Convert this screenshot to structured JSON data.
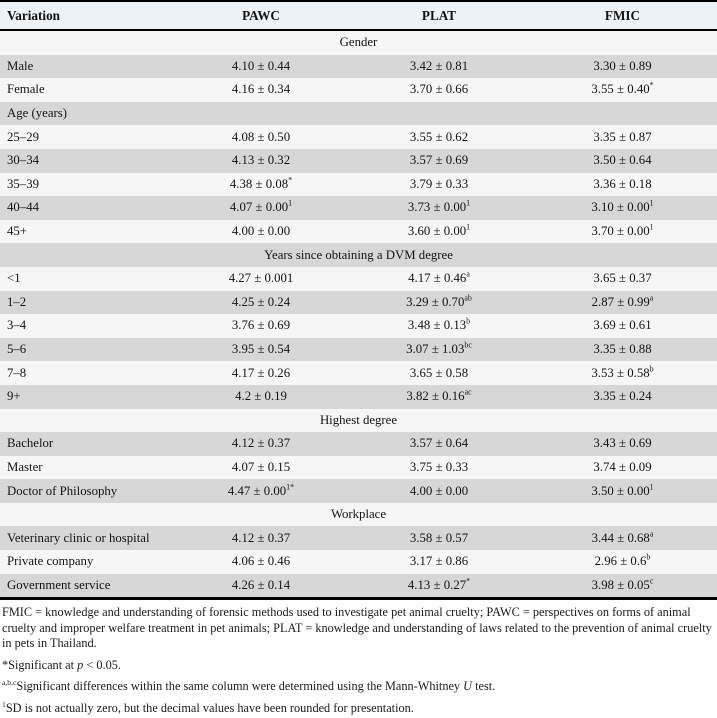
{
  "colors": {
    "row_shaded": "#d7d7d7",
    "row_light": "#f6f6f6",
    "header_bg": "#edf2f7",
    "border": "#000000"
  },
  "table": {
    "columns": [
      "Variation",
      "PAWC",
      "PLAT",
      "FMIC"
    ],
    "rows": [
      {
        "type": "section",
        "label": "Gender"
      },
      {
        "type": "data",
        "label": "Male",
        "cells": [
          {
            "v": "4.10 ± 0.44",
            "sup": ""
          },
          {
            "v": "3.42 ± 0.81",
            "sup": ""
          },
          {
            "v": "3.30 ± 0.89",
            "sup": ""
          }
        ]
      },
      {
        "type": "data",
        "label": "Female",
        "cells": [
          {
            "v": "4.16 ± 0.34",
            "sup": ""
          },
          {
            "v": "3.70 ± 0.66",
            "sup": ""
          },
          {
            "v": "3.55 ± 0.40",
            "sup": "*"
          }
        ]
      },
      {
        "type": "subsection",
        "label": "Age (years)"
      },
      {
        "type": "data",
        "label": "25–29",
        "cells": [
          {
            "v": "4.08 ± 0.50",
            "sup": ""
          },
          {
            "v": "3.55 ± 0.62",
            "sup": ""
          },
          {
            "v": "3.35 ± 0.87",
            "sup": ""
          }
        ]
      },
      {
        "type": "data",
        "label": "30–34",
        "cells": [
          {
            "v": "4.13 ± 0.32",
            "sup": ""
          },
          {
            "v": "3.57 ± 0.69",
            "sup": ""
          },
          {
            "v": "3.50 ± 0.64",
            "sup": ""
          }
        ]
      },
      {
        "type": "data",
        "label": "35–39",
        "cells": [
          {
            "v": "4.38 ± 0.08",
            "sup": "*"
          },
          {
            "v": "3.79 ± 0.33",
            "sup": ""
          },
          {
            "v": "3.36 ± 0.18",
            "sup": ""
          }
        ]
      },
      {
        "type": "data",
        "label": "40–44",
        "cells": [
          {
            "v": "4.07 ± 0.00",
            "sup": "1"
          },
          {
            "v": "3.73 ± 0.00",
            "sup": "1"
          },
          {
            "v": "3.10 ± 0.00",
            "sup": "1"
          }
        ]
      },
      {
        "type": "data",
        "label": "45+",
        "cells": [
          {
            "v": "4.00 ± 0.00",
            "sup": ""
          },
          {
            "v": "3.60 ± 0.00",
            "sup": "1"
          },
          {
            "v": "3.70 ± 0.00",
            "sup": "1"
          }
        ]
      },
      {
        "type": "section",
        "label": "Years since obtaining a DVM degree"
      },
      {
        "type": "data",
        "label": "<1",
        "cells": [
          {
            "v": "4.27 ± 0.001",
            "sup": ""
          },
          {
            "v": "4.17 ± 0.46",
            "sup": "a"
          },
          {
            "v": "3.65 ± 0.37",
            "sup": ""
          }
        ]
      },
      {
        "type": "data",
        "label": "1–2",
        "cells": [
          {
            "v": "4.25 ± 0.24",
            "sup": ""
          },
          {
            "v": "3.29 ± 0.70",
            "sup": "ab"
          },
          {
            "v": "2.87 ± 0.99",
            "sup": "a"
          }
        ]
      },
      {
        "type": "data",
        "label": "3–4",
        "cells": [
          {
            "v": "3.76 ± 0.69",
            "sup": ""
          },
          {
            "v": "3.48 ± 0.13",
            "sup": "b"
          },
          {
            "v": "3.69 ± 0.61",
            "sup": ""
          }
        ]
      },
      {
        "type": "data",
        "label": "5–6",
        "cells": [
          {
            "v": "3.95 ± 0.54",
            "sup": ""
          },
          {
            "v": "3.07 ± 1.03",
            "sup": "bc"
          },
          {
            "v": "3.35 ± 0.88",
            "sup": ""
          }
        ]
      },
      {
        "type": "data",
        "label": "7–8",
        "cells": [
          {
            "v": "4.17 ± 0.26",
            "sup": ""
          },
          {
            "v": "3.65 ± 0.58",
            "sup": ""
          },
          {
            "v": "3.53 ± 0.58",
            "sup": "b"
          }
        ]
      },
      {
        "type": "data",
        "label": "9+",
        "cells": [
          {
            "v": "4.2 ± 0.19",
            "sup": ""
          },
          {
            "v": "3.82 ± 0.16",
            "sup": "ac"
          },
          {
            "v": "3.35 ± 0.24",
            "sup": ""
          }
        ]
      },
      {
        "type": "section",
        "label": "Highest degree"
      },
      {
        "type": "data",
        "label": "Bachelor",
        "cells": [
          {
            "v": "4.12 ± 0.37",
            "sup": ""
          },
          {
            "v": "3.57 ± 0.64",
            "sup": ""
          },
          {
            "v": "3.43 ± 0.69",
            "sup": ""
          }
        ]
      },
      {
        "type": "data",
        "label": "Master",
        "cells": [
          {
            "v": "4.07 ± 0.15",
            "sup": ""
          },
          {
            "v": "3.75 ± 0.33",
            "sup": ""
          },
          {
            "v": "3.74 ± 0.09",
            "sup": ""
          }
        ]
      },
      {
        "type": "data",
        "label": "Doctor of Philosophy",
        "cells": [
          {
            "v": "4.47 ± 0.00",
            "sup": "1*"
          },
          {
            "v": "4.00 ± 0.00",
            "sup": ""
          },
          {
            "v": "3.50 ± 0.00",
            "sup": "1"
          }
        ]
      },
      {
        "type": "section",
        "label": "Workplace"
      },
      {
        "type": "data",
        "label": "Veterinary clinic or hospital",
        "cells": [
          {
            "v": "4.12 ± 0.37",
            "sup": ""
          },
          {
            "v": "3.58 ± 0.57",
            "sup": ""
          },
          {
            "v": "3.44 ± 0.68",
            "sup": "a"
          }
        ]
      },
      {
        "type": "data",
        "label": "Private company",
        "cells": [
          {
            "v": "4.06 ± 0.46",
            "sup": ""
          },
          {
            "v": "3.17 ± 0.86",
            "sup": ""
          },
          {
            "v": "2.96 ± 0.6",
            "sup": "b"
          }
        ]
      },
      {
        "type": "data",
        "label": "Government service",
        "cells": [
          {
            "v": "4.26 ± 0.14",
            "sup": ""
          },
          {
            "v": "4.13 ± 0.27",
            "sup": "*"
          },
          {
            "v": "3.98 ± 0.05",
            "sup": "c"
          }
        ]
      }
    ]
  },
  "footnotes": [
    {
      "segments": [
        {
          "text": "FMIC = knowledge and understanding of forensic methods used to investigate pet animal cruelty; PAWC = perspectives on forms of animal cruelty and improper welfare treatment in pet animals; PLAT = knowledge and understanding of laws related to the prevention of animal cruelty in pets in Thailand."
        }
      ]
    },
    {
      "segments": [
        {
          "text": "*Significant at "
        },
        {
          "text": "p",
          "italic": true
        },
        {
          "text": " < 0.05."
        }
      ]
    },
    {
      "segments": [
        {
          "text": "a,b,c",
          "sup": true
        },
        {
          "text": "Significant differences within the same column were determined using the Mann-Whitney "
        },
        {
          "text": "U",
          "italic": true
        },
        {
          "text": " test."
        }
      ]
    },
    {
      "segments": [
        {
          "text": "1",
          "sup": true
        },
        {
          "text": "SD is not actually zero, but the decimal values have been rounded for presentation."
        }
      ]
    }
  ]
}
